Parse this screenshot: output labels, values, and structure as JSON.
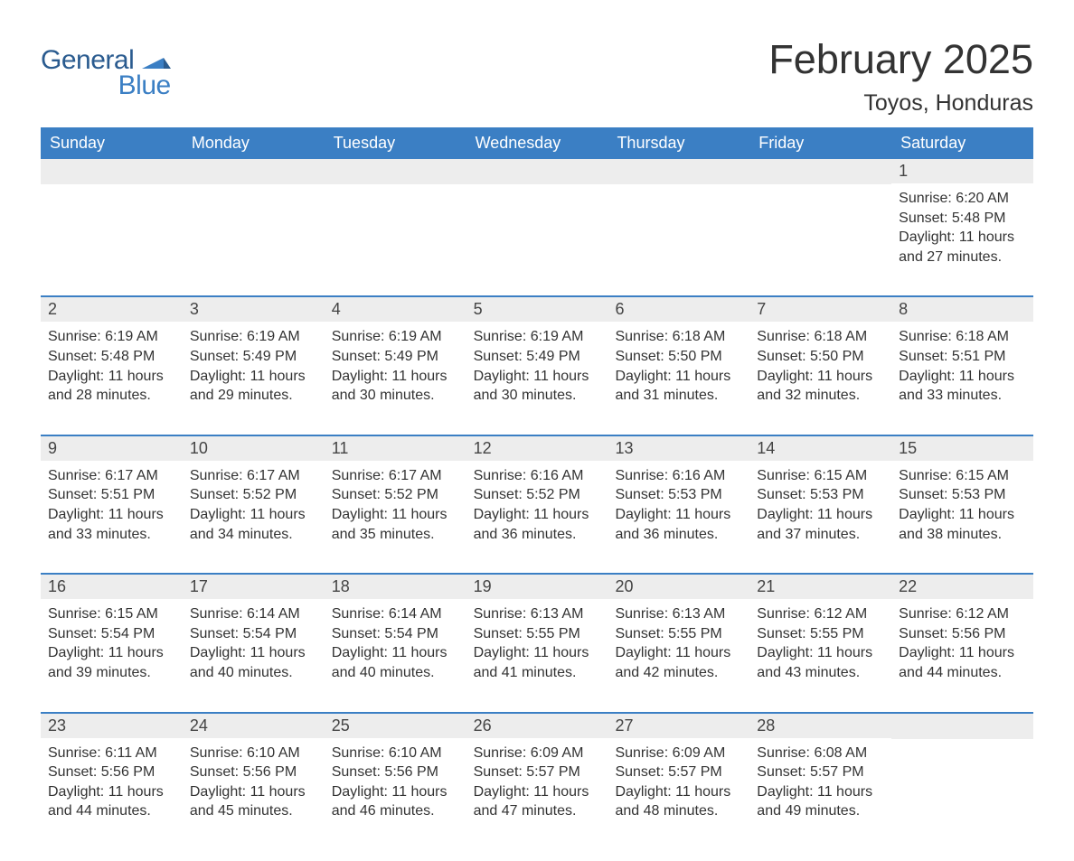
{
  "logo": {
    "part1": "General",
    "part2": "Blue"
  },
  "title": "February 2025",
  "location": "Toyos, Honduras",
  "colors": {
    "header_bg": "#3b7fc4",
    "header_text": "#ffffff",
    "row_border": "#3b7fc4",
    "daynum_bg": "#ededed",
    "text": "#333333",
    "logo1": "#2a5b8f",
    "logo2": "#3b7fc4",
    "background": "#ffffff"
  },
  "weekdays": [
    "Sunday",
    "Monday",
    "Tuesday",
    "Wednesday",
    "Thursday",
    "Friday",
    "Saturday"
  ],
  "weeks": [
    [
      null,
      null,
      null,
      null,
      null,
      null,
      {
        "n": "1",
        "sunrise": "6:20 AM",
        "sunset": "5:48 PM",
        "dl_h": "11",
        "dl_m": "27"
      }
    ],
    [
      {
        "n": "2",
        "sunrise": "6:19 AM",
        "sunset": "5:48 PM",
        "dl_h": "11",
        "dl_m": "28"
      },
      {
        "n": "3",
        "sunrise": "6:19 AM",
        "sunset": "5:49 PM",
        "dl_h": "11",
        "dl_m": "29"
      },
      {
        "n": "4",
        "sunrise": "6:19 AM",
        "sunset": "5:49 PM",
        "dl_h": "11",
        "dl_m": "30"
      },
      {
        "n": "5",
        "sunrise": "6:19 AM",
        "sunset": "5:49 PM",
        "dl_h": "11",
        "dl_m": "30"
      },
      {
        "n": "6",
        "sunrise": "6:18 AM",
        "sunset": "5:50 PM",
        "dl_h": "11",
        "dl_m": "31"
      },
      {
        "n": "7",
        "sunrise": "6:18 AM",
        "sunset": "5:50 PM",
        "dl_h": "11",
        "dl_m": "32"
      },
      {
        "n": "8",
        "sunrise": "6:18 AM",
        "sunset": "5:51 PM",
        "dl_h": "11",
        "dl_m": "33"
      }
    ],
    [
      {
        "n": "9",
        "sunrise": "6:17 AM",
        "sunset": "5:51 PM",
        "dl_h": "11",
        "dl_m": "33"
      },
      {
        "n": "10",
        "sunrise": "6:17 AM",
        "sunset": "5:52 PM",
        "dl_h": "11",
        "dl_m": "34"
      },
      {
        "n": "11",
        "sunrise": "6:17 AM",
        "sunset": "5:52 PM",
        "dl_h": "11",
        "dl_m": "35"
      },
      {
        "n": "12",
        "sunrise": "6:16 AM",
        "sunset": "5:52 PM",
        "dl_h": "11",
        "dl_m": "36"
      },
      {
        "n": "13",
        "sunrise": "6:16 AM",
        "sunset": "5:53 PM",
        "dl_h": "11",
        "dl_m": "36"
      },
      {
        "n": "14",
        "sunrise": "6:15 AM",
        "sunset": "5:53 PM",
        "dl_h": "11",
        "dl_m": "37"
      },
      {
        "n": "15",
        "sunrise": "6:15 AM",
        "sunset": "5:53 PM",
        "dl_h": "11",
        "dl_m": "38"
      }
    ],
    [
      {
        "n": "16",
        "sunrise": "6:15 AM",
        "sunset": "5:54 PM",
        "dl_h": "11",
        "dl_m": "39"
      },
      {
        "n": "17",
        "sunrise": "6:14 AM",
        "sunset": "5:54 PM",
        "dl_h": "11",
        "dl_m": "40"
      },
      {
        "n": "18",
        "sunrise": "6:14 AM",
        "sunset": "5:54 PM",
        "dl_h": "11",
        "dl_m": "40"
      },
      {
        "n": "19",
        "sunrise": "6:13 AM",
        "sunset": "5:55 PM",
        "dl_h": "11",
        "dl_m": "41"
      },
      {
        "n": "20",
        "sunrise": "6:13 AM",
        "sunset": "5:55 PM",
        "dl_h": "11",
        "dl_m": "42"
      },
      {
        "n": "21",
        "sunrise": "6:12 AM",
        "sunset": "5:55 PM",
        "dl_h": "11",
        "dl_m": "43"
      },
      {
        "n": "22",
        "sunrise": "6:12 AM",
        "sunset": "5:56 PM",
        "dl_h": "11",
        "dl_m": "44"
      }
    ],
    [
      {
        "n": "23",
        "sunrise": "6:11 AM",
        "sunset": "5:56 PM",
        "dl_h": "11",
        "dl_m": "44"
      },
      {
        "n": "24",
        "sunrise": "6:10 AM",
        "sunset": "5:56 PM",
        "dl_h": "11",
        "dl_m": "45"
      },
      {
        "n": "25",
        "sunrise": "6:10 AM",
        "sunset": "5:56 PM",
        "dl_h": "11",
        "dl_m": "46"
      },
      {
        "n": "26",
        "sunrise": "6:09 AM",
        "sunset": "5:57 PM",
        "dl_h": "11",
        "dl_m": "47"
      },
      {
        "n": "27",
        "sunrise": "6:09 AM",
        "sunset": "5:57 PM",
        "dl_h": "11",
        "dl_m": "48"
      },
      {
        "n": "28",
        "sunrise": "6:08 AM",
        "sunset": "5:57 PM",
        "dl_h": "11",
        "dl_m": "49"
      },
      null
    ]
  ],
  "labels": {
    "sunrise": "Sunrise: ",
    "sunset": "Sunset: ",
    "daylight_pre": "Daylight: ",
    "hours_word": " hours and ",
    "minutes_word": " minutes."
  }
}
